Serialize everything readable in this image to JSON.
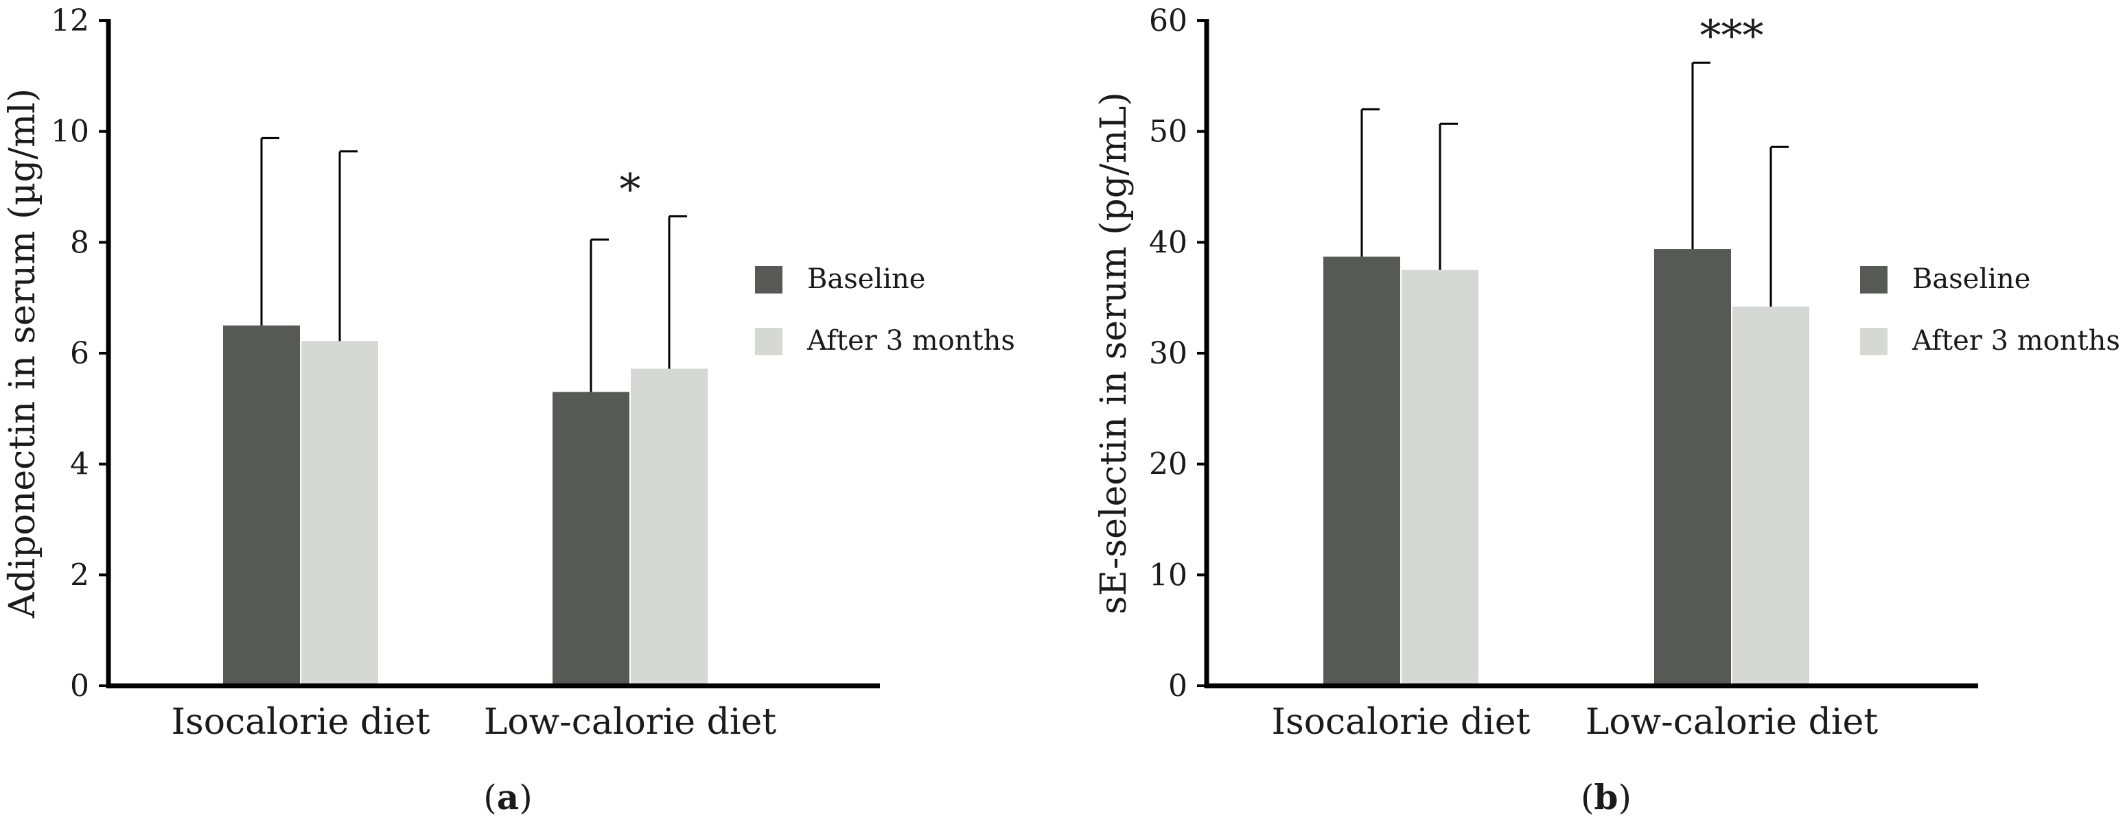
{
  "colors": {
    "baseline": "#565955",
    "after": "#d6d8d3",
    "axis": "#000000",
    "text": "#1a1a1a"
  },
  "chart_data": [
    {
      "type": "bar",
      "panel_label": "a",
      "categories": [
        "Isocalorie diet",
        "Low-calorie diet"
      ],
      "series": [
        {
          "name": "Baseline",
          "values": [
            6.5,
            5.3
          ],
          "error": [
            3.38,
            2.75
          ]
        },
        {
          "name": "After 3 months",
          "values": [
            6.22,
            5.72
          ],
          "error": [
            3.42,
            2.75
          ]
        }
      ],
      "ylabel": "Adiponectin in serum (µg/ml)",
      "xlabel": "",
      "ylim": [
        0,
        12
      ],
      "yticks": [
        "0",
        "2",
        "4",
        "6",
        "8",
        "10",
        "12"
      ],
      "annotations": [
        {
          "category": 1,
          "text": "*"
        }
      ],
      "legend": {
        "position": "right",
        "entries": [
          "Baseline",
          "After 3 months"
        ]
      },
      "grid": false
    },
    {
      "type": "bar",
      "panel_label": "b",
      "categories": [
        "Isocalorie diet",
        "Low-calorie diet"
      ],
      "series": [
        {
          "name": "Baseline",
          "values": [
            38.7,
            39.4
          ],
          "error": [
            13.3,
            16.8
          ]
        },
        {
          "name": "After 3 months",
          "values": [
            37.5,
            34.2
          ],
          "error": [
            13.2,
            14.4
          ]
        }
      ],
      "ylabel": "sE-selectin in serum (pg/mL)",
      "xlabel": "",
      "ylim": [
        0,
        60
      ],
      "yticks": [
        "0",
        "10",
        "20",
        "30",
        "40",
        "50",
        "60"
      ],
      "annotations": [
        {
          "category": 1,
          "text": "***"
        }
      ],
      "legend": {
        "position": "right",
        "entries": [
          "Baseline",
          "After 3 months"
        ]
      },
      "grid": false
    }
  ]
}
